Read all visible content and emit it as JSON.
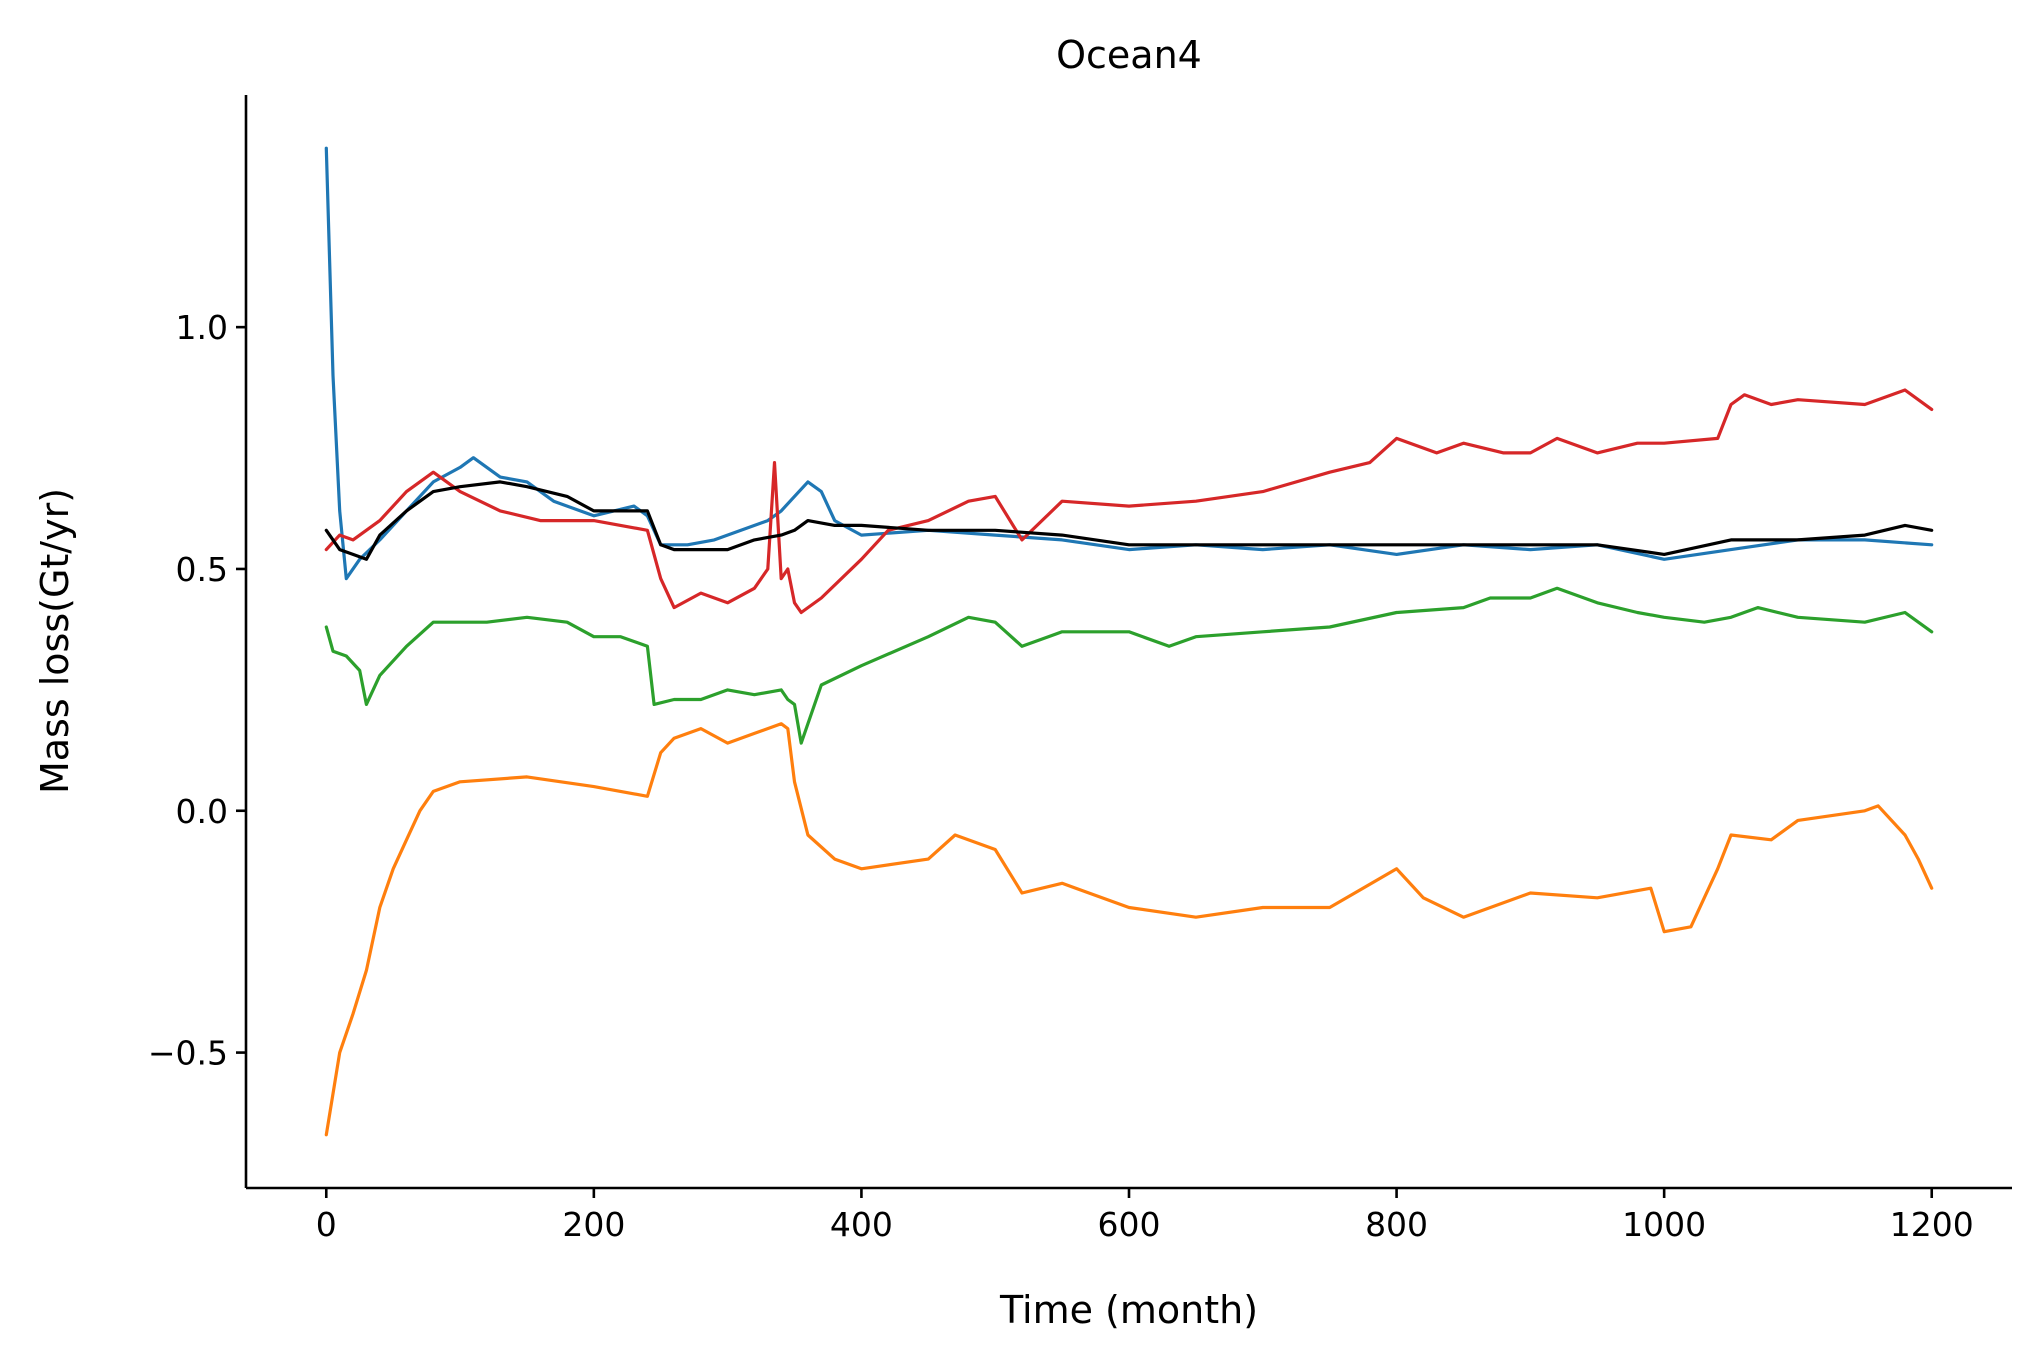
{
  "chart_data": {
    "type": "line",
    "title": "Ocean4",
    "xlabel": "Time (month)",
    "ylabel": "Mass loss(Gt/yr)",
    "xlim": [
      -60,
      1260
    ],
    "ylim": [
      -0.78,
      1.48
    ],
    "xticks": [
      0,
      200,
      400,
      600,
      800,
      1000,
      1200
    ],
    "xtick_labels": [
      "0",
      "200",
      "400",
      "600",
      "800",
      "1000",
      "1200"
    ],
    "yticks": [
      -0.5,
      0.0,
      0.5,
      1.0
    ],
    "ytick_labels": [
      "−0.5",
      "0.0",
      "0.5",
      "1.0"
    ],
    "grid": false,
    "series": [
      {
        "color": "#1f77b4",
        "x": [
          0,
          5,
          10,
          15,
          25,
          40,
          60,
          80,
          100,
          110,
          130,
          150,
          170,
          200,
          230,
          240,
          250,
          270,
          290,
          310,
          330,
          340,
          350,
          360,
          370,
          380,
          400,
          450,
          500,
          550,
          600,
          650,
          700,
          750,
          800,
          850,
          900,
          950,
          1000,
          1050,
          1100,
          1150,
          1200
        ],
        "y": [
          1.37,
          0.9,
          0.62,
          0.48,
          0.52,
          0.56,
          0.62,
          0.68,
          0.71,
          0.73,
          0.69,
          0.68,
          0.64,
          0.61,
          0.63,
          0.61,
          0.55,
          0.55,
          0.56,
          0.58,
          0.6,
          0.62,
          0.65,
          0.68,
          0.66,
          0.6,
          0.57,
          0.58,
          0.57,
          0.56,
          0.54,
          0.55,
          0.54,
          0.55,
          0.53,
          0.55,
          0.54,
          0.55,
          0.52,
          0.54,
          0.56,
          0.56,
          0.55
        ]
      },
      {
        "color": "#ff7f0e",
        "x": [
          0,
          10,
          20,
          30,
          40,
          50,
          60,
          70,
          80,
          100,
          150,
          200,
          240,
          250,
          260,
          280,
          300,
          320,
          340,
          345,
          350,
          360,
          380,
          400,
          450,
          470,
          500,
          520,
          550,
          600,
          650,
          700,
          750,
          800,
          820,
          850,
          900,
          950,
          990,
          1000,
          1020,
          1040,
          1050,
          1080,
          1100,
          1150,
          1160,
          1180,
          1190,
          1200
        ],
        "y": [
          -0.67,
          -0.5,
          -0.42,
          -0.33,
          -0.2,
          -0.12,
          -0.06,
          0.0,
          0.04,
          0.06,
          0.07,
          0.05,
          0.03,
          0.12,
          0.15,
          0.17,
          0.14,
          0.16,
          0.18,
          0.17,
          0.06,
          -0.05,
          -0.1,
          -0.12,
          -0.1,
          -0.05,
          -0.08,
          -0.17,
          -0.15,
          -0.2,
          -0.22,
          -0.2,
          -0.2,
          -0.12,
          -0.18,
          -0.22,
          -0.17,
          -0.18,
          -0.16,
          -0.25,
          -0.24,
          -0.12,
          -0.05,
          -0.06,
          -0.02,
          0.0,
          0.01,
          -0.05,
          -0.1,
          -0.16
        ]
      },
      {
        "color": "#2ca02c",
        "x": [
          0,
          5,
          15,
          25,
          30,
          40,
          60,
          80,
          100,
          120,
          150,
          180,
          200,
          220,
          240,
          245,
          260,
          280,
          300,
          320,
          340,
          345,
          350,
          355,
          370,
          400,
          450,
          480,
          500,
          520,
          550,
          600,
          630,
          650,
          700,
          750,
          800,
          850,
          870,
          900,
          920,
          950,
          980,
          1000,
          1030,
          1050,
          1070,
          1100,
          1150,
          1180,
          1200
        ],
        "y": [
          0.38,
          0.33,
          0.32,
          0.29,
          0.22,
          0.28,
          0.34,
          0.39,
          0.39,
          0.39,
          0.4,
          0.39,
          0.36,
          0.36,
          0.34,
          0.22,
          0.23,
          0.23,
          0.25,
          0.24,
          0.25,
          0.23,
          0.22,
          0.14,
          0.26,
          0.3,
          0.36,
          0.4,
          0.39,
          0.34,
          0.37,
          0.37,
          0.34,
          0.36,
          0.37,
          0.38,
          0.41,
          0.42,
          0.44,
          0.44,
          0.46,
          0.43,
          0.41,
          0.4,
          0.39,
          0.4,
          0.42,
          0.4,
          0.39,
          0.41,
          0.37
        ]
      },
      {
        "color": "#d62728",
        "x": [
          0,
          10,
          20,
          40,
          60,
          80,
          100,
          130,
          160,
          200,
          240,
          250,
          260,
          280,
          300,
          320,
          330,
          335,
          340,
          345,
          350,
          355,
          370,
          400,
          420,
          450,
          480,
          500,
          520,
          550,
          600,
          650,
          700,
          750,
          780,
          800,
          830,
          850,
          880,
          900,
          920,
          950,
          980,
          1000,
          1040,
          1050,
          1060,
          1080,
          1100,
          1150,
          1180,
          1200
        ],
        "y": [
          0.54,
          0.57,
          0.56,
          0.6,
          0.66,
          0.7,
          0.66,
          0.62,
          0.6,
          0.6,
          0.58,
          0.48,
          0.42,
          0.45,
          0.43,
          0.46,
          0.5,
          0.72,
          0.48,
          0.5,
          0.43,
          0.41,
          0.44,
          0.52,
          0.58,
          0.6,
          0.64,
          0.65,
          0.56,
          0.64,
          0.63,
          0.64,
          0.66,
          0.7,
          0.72,
          0.77,
          0.74,
          0.76,
          0.74,
          0.74,
          0.77,
          0.74,
          0.76,
          0.76,
          0.77,
          0.84,
          0.86,
          0.84,
          0.85,
          0.84,
          0.87,
          0.83
        ]
      },
      {
        "color": "#000000",
        "x": [
          0,
          10,
          20,
          30,
          40,
          60,
          80,
          100,
          130,
          150,
          180,
          200,
          240,
          250,
          260,
          280,
          300,
          320,
          340,
          350,
          360,
          380,
          400,
          450,
          500,
          550,
          600,
          650,
          700,
          750,
          800,
          850,
          900,
          950,
          1000,
          1050,
          1100,
          1150,
          1180,
          1200
        ],
        "y": [
          0.58,
          0.54,
          0.53,
          0.52,
          0.57,
          0.62,
          0.66,
          0.67,
          0.68,
          0.67,
          0.65,
          0.62,
          0.62,
          0.55,
          0.54,
          0.54,
          0.54,
          0.56,
          0.57,
          0.58,
          0.6,
          0.59,
          0.59,
          0.58,
          0.58,
          0.57,
          0.55,
          0.55,
          0.55,
          0.55,
          0.55,
          0.55,
          0.55,
          0.55,
          0.53,
          0.56,
          0.56,
          0.57,
          0.59,
          0.58
        ]
      }
    ]
  }
}
